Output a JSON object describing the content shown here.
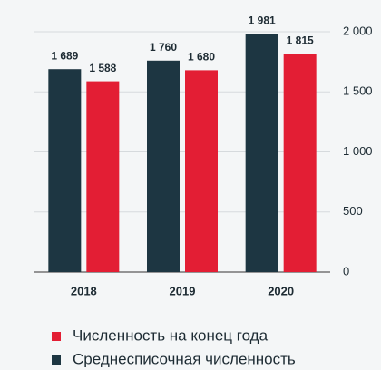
{
  "chart_data": {
    "type": "bar",
    "categories": [
      "2018",
      "2019",
      "2020"
    ],
    "series": [
      {
        "name": "Среднесписочная численность",
        "color": "#1d3642",
        "values": [
          1689,
          1760,
          1981
        ],
        "value_labels": [
          "1 689",
          "1 760",
          "1 981"
        ]
      },
      {
        "name": "Численность на конец года",
        "color": "#e31e34",
        "values": [
          1588,
          1680,
          1815
        ],
        "value_labels": [
          "1 588",
          "1 680",
          "1 815"
        ]
      }
    ],
    "ylim": [
      0,
      2000
    ],
    "yticks": [
      0,
      500,
      {
        "value": 1000,
        "label": "1 000"
      },
      {
        "value": 1500,
        "label": "1 500"
      },
      {
        "value": 2000,
        "label": "2 000"
      }
    ],
    "grid": true
  }
}
